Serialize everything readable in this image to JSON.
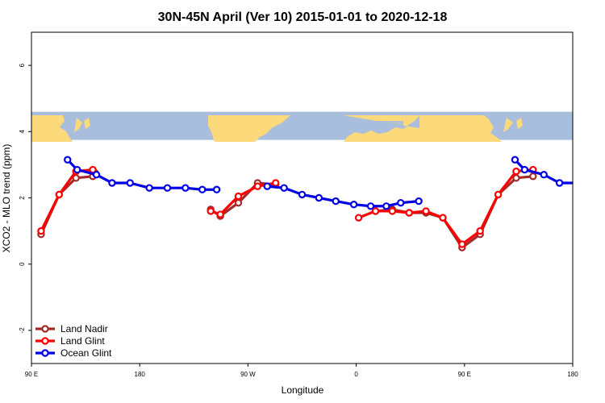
{
  "chart_data": {
    "type": "line",
    "title": "30N-45N April (Ver 10)   2015-01-01 to 2020-12-18",
    "xlabel": "Longitude",
    "ylabel": "XCO2 - MLO trend (ppm)",
    "xlim": [
      90,
      540
    ],
    "ylim": [
      -3,
      7
    ],
    "x_ticks": [
      {
        "value": 90,
        "label": "90 E"
      },
      {
        "value": 180,
        "label": "180"
      },
      {
        "value": 270,
        "label": "90 W"
      },
      {
        "value": 360,
        "label": "0"
      },
      {
        "value": 450,
        "label": "90 E"
      },
      {
        "value": 540,
        "label": "180"
      }
    ],
    "y_ticks": [
      {
        "value": -2,
        "label": "-2"
      },
      {
        "value": 0,
        "label": "0"
      },
      {
        "value": 2,
        "label": "2"
      },
      {
        "value": 4,
        "label": "4"
      },
      {
        "value": 6,
        "label": "6"
      }
    ],
    "grid": false,
    "legend_position": "bottom-left",
    "map_strip": {
      "y_range": [
        3.75,
        4.6
      ],
      "ocean_color": "#a8bedc",
      "land_color": "#fcd97a"
    },
    "series": [
      {
        "name": "Land Nadir",
        "color": "#a52a2a",
        "segments": [
          [
            [
              98,
              0.9
            ],
            [
              113,
              2.1
            ],
            [
              127,
              2.6
            ],
            [
              141,
              2.65
            ],
            [
              143,
              2.75
            ]
          ],
          [
            [
              239,
              1.65
            ],
            [
              247,
              1.45
            ],
            [
              262,
              1.85
            ],
            [
              278,
              2.45
            ],
            [
              293,
              2.4
            ]
          ],
          [
            [
              376,
              1.6
            ],
            [
              390,
              1.65
            ],
            [
              404,
              1.55
            ],
            [
              418,
              1.55
            ],
            [
              432,
              1.4
            ],
            [
              448,
              0.5
            ],
            [
              463,
              0.9
            ],
            [
              478,
              2.1
            ],
            [
              493,
              2.6
            ],
            [
              507,
              2.65
            ]
          ]
        ]
      },
      {
        "name": "Land Glint",
        "color": "#ff0000",
        "segments": [
          [
            [
              98,
              1.0
            ],
            [
              113,
              2.1
            ],
            [
              127,
              2.8
            ],
            [
              141,
              2.85
            ]
          ],
          [
            [
              239,
              1.6
            ],
            [
              247,
              1.5
            ],
            [
              262,
              2.05
            ],
            [
              278,
              2.35
            ],
            [
              293,
              2.45
            ]
          ],
          [
            [
              362,
              1.4
            ],
            [
              376,
              1.6
            ],
            [
              390,
              1.6
            ],
            [
              404,
              1.55
            ],
            [
              418,
              1.6
            ],
            [
              432,
              1.4
            ],
            [
              448,
              0.6
            ],
            [
              463,
              1.0
            ],
            [
              478,
              2.1
            ],
            [
              493,
              2.8
            ],
            [
              507,
              2.85
            ]
          ]
        ]
      },
      {
        "name": "Ocean Glint",
        "color": "#0000e6",
        "segments": [
          [
            [
              120,
              3.15
            ],
            [
              128,
              2.85
            ],
            [
              144,
              2.7
            ],
            [
              157,
              2.45
            ],
            [
              172,
              2.45
            ],
            [
              188,
              2.3
            ],
            [
              203,
              2.3
            ],
            [
              218,
              2.3
            ],
            [
              232,
              2.25
            ],
            [
              244,
              2.25
            ]
          ],
          [
            [
              286,
              2.35
            ],
            [
              300,
              2.3
            ],
            [
              315,
              2.1
            ],
            [
              329,
              2.0
            ],
            [
              343,
              1.9
            ],
            [
              358,
              1.8
            ],
            [
              372,
              1.75
            ],
            [
              385,
              1.75
            ],
            [
              397,
              1.85
            ],
            [
              412,
              1.9
            ]
          ],
          [
            [
              492,
              3.15
            ],
            [
              500,
              2.85
            ],
            [
              516,
              2.7
            ],
            [
              529,
              2.45
            ],
            [
              544,
              2.45
            ]
          ]
        ]
      }
    ]
  }
}
